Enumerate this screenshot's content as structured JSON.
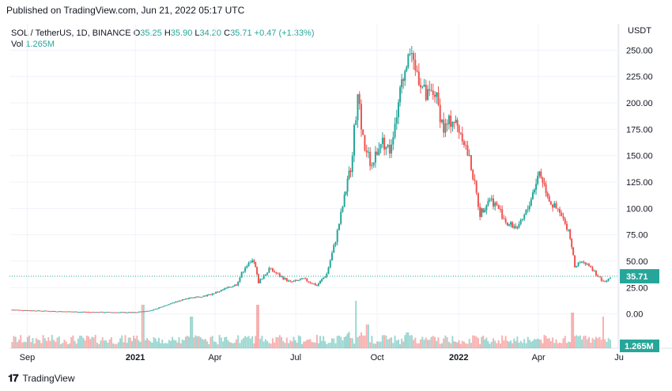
{
  "header": {
    "published": "Published on TradingView.com, Jun 21, 2022 05:17 UTC"
  },
  "legend": {
    "symbol": "SOL / TetherUS, 1D, BINANCE",
    "o_label": "O",
    "o_value": "35.25",
    "h_label": "H",
    "h_value": "35.90",
    "l_label": "L",
    "l_value": "34.20",
    "c_label": "C",
    "c_value": "35.71",
    "change": "+0.47 (+1.33%)",
    "vol_label": "Vol",
    "vol_value": "1.265M"
  },
  "footer": {
    "brand": "TradingView"
  },
  "colors": {
    "up": "#26a69a",
    "down": "#ef5350",
    "grid": "#f0f3fa",
    "axis_text": "#131722",
    "price_tag": "#26a69a"
  },
  "chart_data": {
    "type": "candlestick",
    "y_axis_unit": "USDT",
    "y_ticks": [
      "250.00",
      "225.00",
      "200.00",
      "175.00",
      "150.00",
      "125.00",
      "100.00",
      "75.00",
      "50.00",
      "25.00",
      "0.00"
    ],
    "ylim": [
      -25,
      275
    ],
    "x_ticks": [
      "Sep",
      "2021",
      "Apr",
      "Jul",
      "Oct",
      "2022",
      "Apr",
      "Ju"
    ],
    "last_price_label": "35.71",
    "volume_label": "1.265M",
    "price_path": [
      [
        "2020-08-15",
        4.0
      ],
      [
        "2020-09-15",
        3.0
      ],
      [
        "2020-10-15",
        2.3
      ],
      [
        "2020-11-15",
        1.8
      ],
      [
        "2020-12-15",
        1.6
      ],
      [
        "2021-01-01",
        1.5
      ],
      [
        "2021-01-20",
        3.5
      ],
      [
        "2021-02-10",
        10
      ],
      [
        "2021-02-25",
        14
      ],
      [
        "2021-03-10",
        16
      ],
      [
        "2021-03-25",
        18
      ],
      [
        "2021-04-10",
        23
      ],
      [
        "2021-04-25",
        28
      ],
      [
        "2021-05-05",
        45
      ],
      [
        "2021-05-15",
        50
      ],
      [
        "2021-05-20",
        30
      ],
      [
        "2021-06-01",
        43
      ],
      [
        "2021-06-15",
        35
      ],
      [
        "2021-06-25",
        30
      ],
      [
        "2021-07-10",
        33
      ],
      [
        "2021-07-25",
        27
      ],
      [
        "2021-08-05",
        38
      ],
      [
        "2021-08-15",
        70
      ],
      [
        "2021-08-25",
        110
      ],
      [
        "2021-09-01",
        140
      ],
      [
        "2021-09-09",
        205
      ],
      [
        "2021-09-15",
        165
      ],
      [
        "2021-09-25",
        140
      ],
      [
        "2021-10-05",
        165
      ],
      [
        "2021-10-15",
        155
      ],
      [
        "2021-10-25",
        200
      ],
      [
        "2021-11-05",
        250
      ],
      [
        "2021-11-15",
        230
      ],
      [
        "2021-11-25",
        205
      ],
      [
        "2021-12-05",
        210
      ],
      [
        "2021-12-15",
        175
      ],
      [
        "2021-12-25",
        185
      ],
      [
        "2022-01-05",
        170
      ],
      [
        "2022-01-15",
        140
      ],
      [
        "2022-01-25",
        95
      ],
      [
        "2022-02-05",
        110
      ],
      [
        "2022-02-15",
        100
      ],
      [
        "2022-02-25",
        85
      ],
      [
        "2022-03-10",
        82
      ],
      [
        "2022-03-20",
        100
      ],
      [
        "2022-04-02",
        135
      ],
      [
        "2022-04-15",
        105
      ],
      [
        "2022-04-25",
        95
      ],
      [
        "2022-05-05",
        80
      ],
      [
        "2022-05-12",
        45
      ],
      [
        "2022-05-20",
        50
      ],
      [
        "2022-06-01",
        42
      ],
      [
        "2022-06-13",
        30
      ],
      [
        "2022-06-21",
        35.71
      ]
    ],
    "volume_relative_peaks": [
      [
        "2021-01-10",
        0.55
      ],
      [
        "2021-03-05",
        0.4
      ],
      [
        "2021-05-20",
        0.55
      ],
      [
        "2021-09-07",
        0.6
      ],
      [
        "2021-09-20",
        0.3
      ],
      [
        "2021-11-05",
        0.2
      ],
      [
        "2022-05-10",
        0.45
      ],
      [
        "2022-06-13",
        0.4
      ]
    ]
  }
}
